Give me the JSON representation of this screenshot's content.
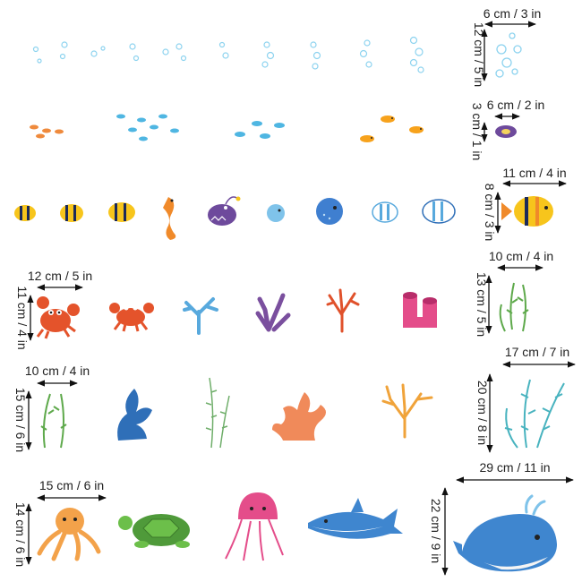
{
  "dimensions": {
    "bubbles": {
      "width": "6 cm / 3 in",
      "height": "12 cm / 5 in"
    },
    "shell": {
      "width": "6 cm / 2 in",
      "height": "3 cm / 1 in"
    },
    "yellow_fish": {
      "width": "11 cm / 4 in",
      "height": "8 cm / 3 in"
    },
    "crab": {
      "width": "12 cm / 5 in",
      "height": "11 cm / 4 in"
    },
    "seaweed_small": {
      "width": "10 cm / 4 in",
      "height": "13 cm / 5 in"
    },
    "seaweed": {
      "width": "10 cm / 4 in",
      "height": "15 cm / 6 in"
    },
    "seaweed_large": {
      "width": "17 cm / 7 in",
      "height": "20 cm / 8 in"
    },
    "octopus": {
      "width": "15 cm / 6 in",
      "height": "14 cm / 6 in"
    },
    "whale": {
      "width": "29 cm / 11 in",
      "height": "22 cm / 9 in"
    }
  },
  "colors": {
    "bubble": "#7fd0ee",
    "small_fish": "#ef8a3c",
    "blue_fish": "#4fb6e2",
    "yellow": "#f7c51c",
    "orange": "#f08a2a",
    "purple": "#6e4a9c",
    "blue": "#3f7fd0",
    "red": "#e4532b",
    "coral_blue": "#58a9dd",
    "coral_purple": "#7a4f9e",
    "coral_red": "#e0512b",
    "pink": "#e44d8a",
    "green": "#5ea94b",
    "teal": "#48b3bf",
    "dark_blue": "#2f6fb8",
    "turtle_green": "#4f9a3a",
    "whale_blue": "#3f86cf"
  }
}
